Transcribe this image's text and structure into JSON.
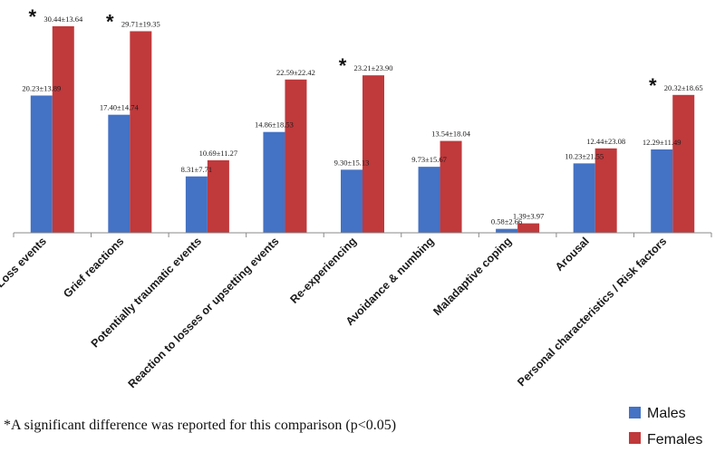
{
  "chart_data": {
    "type": "bar",
    "categories": [
      "Loss events",
      "Grief reactions",
      "Potentially traumatic events",
      "Reaction to losses or upsetting events",
      "Re-experiencing",
      "Avoidance & numbing",
      "Maladaptive coping",
      "Arousal",
      "Personal characteristics / Risk factors"
    ],
    "series": [
      {
        "name": "Males",
        "color": "#4472C4",
        "values": [
          20.23,
          17.4,
          8.31,
          14.86,
          9.3,
          9.73,
          0.58,
          10.23,
          12.29
        ],
        "labels": [
          "20.23±13.89",
          "17.40±14.74",
          "8.31±7.71",
          "14.86±18.53",
          "9.30±15.13",
          "9.73±15.67",
          "0.58±2.66",
          "10.23±21.55",
          "12.29±11.49"
        ]
      },
      {
        "name": "Females",
        "color": "#C0393B",
        "values": [
          30.44,
          29.71,
          10.69,
          22.59,
          23.21,
          13.54,
          1.39,
          12.44,
          20.32
        ],
        "labels": [
          "30.44±13.64",
          "29.71±19.35",
          "10.69±11.27",
          "22.59±22.42",
          "23.21±23.90",
          "13.54±18.04",
          "1.39±3.97",
          "12.44±23.08",
          "20.32±18.65"
        ]
      }
    ],
    "significant": [
      true,
      true,
      false,
      false,
      true,
      false,
      false,
      false,
      true
    ],
    "significance_marker": "*",
    "ylim": [
      0,
      30.44
    ],
    "grid": false,
    "legend_position": "bottom-right",
    "footnote": "*A significant difference was reported for this comparison (p<0.05)"
  }
}
